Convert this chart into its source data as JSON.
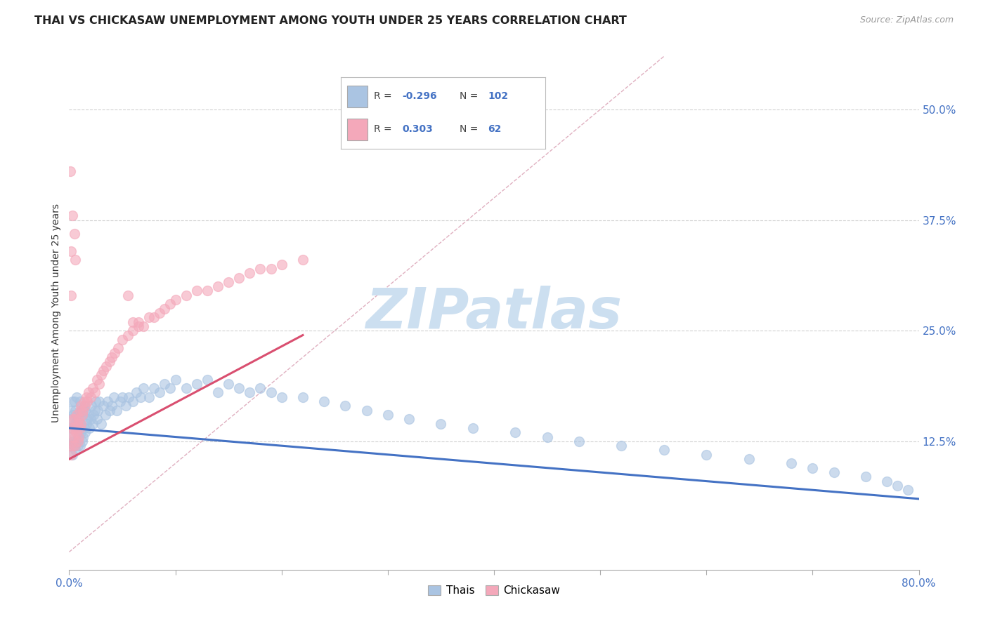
{
  "title": "THAI VS CHICKASAW UNEMPLOYMENT AMONG YOUTH UNDER 25 YEARS CORRELATION CHART",
  "source": "Source: ZipAtlas.com",
  "ylabel": "Unemployment Among Youth under 25 years",
  "xlim": [
    0,
    0.8
  ],
  "ylim": [
    -0.02,
    0.56
  ],
  "yticks_right": [
    0.125,
    0.25,
    0.375,
    0.5
  ],
  "yticklabels_right": [
    "12.5%",
    "25.0%",
    "37.5%",
    "50.0%"
  ],
  "legend_r_thai": "-0.296",
  "legend_n_thai": "102",
  "legend_r_chick": "0.303",
  "legend_n_chick": "62",
  "thai_color": "#aac4e2",
  "chickasaw_color": "#f4a8ba",
  "thai_line_color": "#4472c4",
  "chickasaw_line_color": "#d94f70",
  "ref_line_color": "#e0b0c0",
  "background_color": "#ffffff",
  "watermark_color": "#ccdff0",
  "thai_scatter_x": [
    0.001,
    0.001,
    0.002,
    0.002,
    0.003,
    0.003,
    0.003,
    0.004,
    0.004,
    0.005,
    0.005,
    0.005,
    0.006,
    0.006,
    0.006,
    0.007,
    0.007,
    0.007,
    0.008,
    0.008,
    0.009,
    0.009,
    0.01,
    0.01,
    0.01,
    0.011,
    0.011,
    0.012,
    0.012,
    0.013,
    0.013,
    0.014,
    0.014,
    0.015,
    0.015,
    0.016,
    0.017,
    0.018,
    0.019,
    0.02,
    0.021,
    0.022,
    0.023,
    0.024,
    0.025,
    0.026,
    0.027,
    0.028,
    0.03,
    0.032,
    0.034,
    0.036,
    0.038,
    0.04,
    0.042,
    0.045,
    0.048,
    0.05,
    0.053,
    0.056,
    0.06,
    0.063,
    0.067,
    0.07,
    0.075,
    0.08,
    0.085,
    0.09,
    0.095,
    0.1,
    0.11,
    0.12,
    0.13,
    0.14,
    0.15,
    0.16,
    0.17,
    0.18,
    0.19,
    0.2,
    0.22,
    0.24,
    0.26,
    0.28,
    0.3,
    0.32,
    0.35,
    0.38,
    0.42,
    0.45,
    0.48,
    0.52,
    0.56,
    0.6,
    0.64,
    0.68,
    0.7,
    0.72,
    0.75,
    0.77,
    0.78,
    0.79
  ],
  "thai_scatter_y": [
    0.13,
    0.15,
    0.12,
    0.16,
    0.11,
    0.14,
    0.17,
    0.125,
    0.155,
    0.12,
    0.145,
    0.17,
    0.115,
    0.14,
    0.16,
    0.125,
    0.15,
    0.175,
    0.12,
    0.145,
    0.13,
    0.155,
    0.12,
    0.145,
    0.17,
    0.135,
    0.16,
    0.125,
    0.155,
    0.13,
    0.16,
    0.14,
    0.165,
    0.135,
    0.16,
    0.145,
    0.15,
    0.155,
    0.14,
    0.15,
    0.165,
    0.145,
    0.155,
    0.16,
    0.17,
    0.15,
    0.16,
    0.17,
    0.145,
    0.165,
    0.155,
    0.17,
    0.16,
    0.165,
    0.175,
    0.16,
    0.17,
    0.175,
    0.165,
    0.175,
    0.17,
    0.18,
    0.175,
    0.185,
    0.175,
    0.185,
    0.18,
    0.19,
    0.185,
    0.195,
    0.185,
    0.19,
    0.195,
    0.18,
    0.19,
    0.185,
    0.18,
    0.185,
    0.18,
    0.175,
    0.175,
    0.17,
    0.165,
    0.16,
    0.155,
    0.15,
    0.145,
    0.14,
    0.135,
    0.13,
    0.125,
    0.12,
    0.115,
    0.11,
    0.105,
    0.1,
    0.095,
    0.09,
    0.085,
    0.08,
    0.075,
    0.07
  ],
  "chickasaw_scatter_x": [
    0.001,
    0.002,
    0.002,
    0.003,
    0.003,
    0.004,
    0.004,
    0.005,
    0.005,
    0.006,
    0.006,
    0.007,
    0.007,
    0.008,
    0.008,
    0.009,
    0.009,
    0.01,
    0.01,
    0.011,
    0.011,
    0.012,
    0.013,
    0.014,
    0.015,
    0.016,
    0.017,
    0.018,
    0.02,
    0.022,
    0.024,
    0.026,
    0.028,
    0.03,
    0.032,
    0.035,
    0.038,
    0.04,
    0.043,
    0.046,
    0.05,
    0.055,
    0.06,
    0.065,
    0.07,
    0.075,
    0.08,
    0.085,
    0.09,
    0.095,
    0.1,
    0.11,
    0.12,
    0.13,
    0.14,
    0.15,
    0.16,
    0.17,
    0.18,
    0.19,
    0.2,
    0.22
  ],
  "chickasaw_scatter_y": [
    0.12,
    0.14,
    0.11,
    0.15,
    0.13,
    0.14,
    0.12,
    0.13,
    0.15,
    0.14,
    0.12,
    0.135,
    0.155,
    0.125,
    0.145,
    0.13,
    0.15,
    0.14,
    0.16,
    0.145,
    0.165,
    0.155,
    0.16,
    0.17,
    0.165,
    0.175,
    0.17,
    0.18,
    0.175,
    0.185,
    0.18,
    0.195,
    0.19,
    0.2,
    0.205,
    0.21,
    0.215,
    0.22,
    0.225,
    0.23,
    0.24,
    0.245,
    0.25,
    0.255,
    0.255,
    0.265,
    0.265,
    0.27,
    0.275,
    0.28,
    0.285,
    0.29,
    0.295,
    0.295,
    0.3,
    0.305,
    0.31,
    0.315,
    0.32,
    0.32,
    0.325,
    0.33
  ],
  "chickasaw_outliers_x": [
    0.001,
    0.002,
    0.002,
    0.003,
    0.005,
    0.006,
    0.055,
    0.06,
    0.065
  ],
  "chickasaw_outliers_y": [
    0.43,
    0.34,
    0.29,
    0.38,
    0.36,
    0.33,
    0.29,
    0.26,
    0.26
  ]
}
